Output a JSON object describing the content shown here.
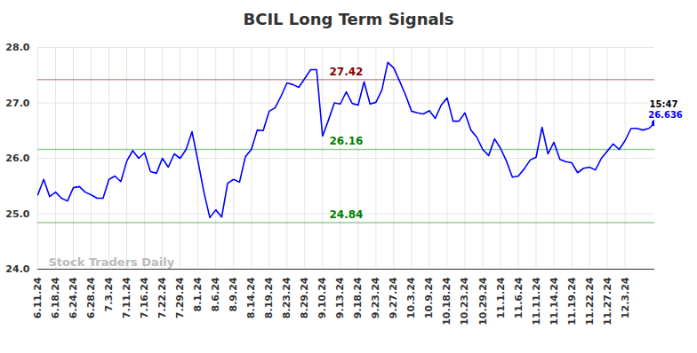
{
  "chart_data": {
    "type": "line",
    "title": "BCIL Long Term Signals",
    "categories": [
      "6.11.24",
      null,
      null,
      "6.18.24",
      null,
      null,
      "6.24.24",
      null,
      null,
      "6.28.24",
      null,
      null,
      "7.3.24",
      null,
      null,
      "7.11.24",
      null,
      null,
      "7.16.24",
      null,
      null,
      "7.22.24",
      null,
      null,
      "7.29.24",
      null,
      null,
      "8.1.24",
      null,
      null,
      "8.6.24",
      null,
      null,
      "8.9.24",
      null,
      null,
      "8.14.24",
      null,
      null,
      "8.19.24",
      null,
      null,
      "8.23.24",
      null,
      null,
      "8.29.24",
      null,
      null,
      "9.10.24",
      null,
      null,
      "9.13.24",
      null,
      null,
      "9.18.24",
      null,
      null,
      "9.23.24",
      null,
      null,
      "9.27.24",
      null,
      null,
      "10.3.24",
      null,
      null,
      "10.9.24",
      null,
      null,
      "10.18.24",
      null,
      null,
      "10.23.24",
      null,
      null,
      "10.29.24",
      null,
      null,
      "11.1.24",
      null,
      null,
      "11.6.24",
      null,
      null,
      "11.11.24",
      null,
      null,
      "11.14.24",
      null,
      null,
      "11.19.24",
      null,
      null,
      "11.22.24",
      null,
      null,
      "11.27.24",
      null,
      null,
      "12.3.24",
      null,
      null,
      null,
      null,
      null
    ],
    "values": [
      25.34,
      25.62,
      25.31,
      25.39,
      25.28,
      25.23,
      25.47,
      25.49,
      25.39,
      25.34,
      25.28,
      25.28,
      25.62,
      25.68,
      25.58,
      25.95,
      26.14,
      26.0,
      26.1,
      25.76,
      25.73,
      26.0,
      25.84,
      26.08,
      26.0,
      26.16,
      26.48,
      25.95,
      25.39,
      24.93,
      25.07,
      24.94,
      25.55,
      25.62,
      25.57,
      26.03,
      26.16,
      26.51,
      26.5,
      26.85,
      26.91,
      27.12,
      27.36,
      27.33,
      27.28,
      27.44,
      27.6,
      27.6,
      26.4,
      26.69,
      27.0,
      26.98,
      27.2,
      26.99,
      26.96,
      27.38,
      26.98,
      27.01,
      27.23,
      27.73,
      27.63,
      27.39,
      27.14,
      26.85,
      26.82,
      26.8,
      26.86,
      26.72,
      26.96,
      27.09,
      26.67,
      26.67,
      26.82,
      26.51,
      26.38,
      26.16,
      26.05,
      26.35,
      26.18,
      25.95,
      25.66,
      25.68,
      25.81,
      25.97,
      26.02,
      26.56,
      26.08,
      26.29,
      25.98,
      25.94,
      25.92,
      25.74,
      25.82,
      25.84,
      25.79,
      26.0,
      26.13,
      26.26,
      26.16,
      26.32,
      26.54,
      26.54,
      26.51,
      26.54,
      26.636
    ],
    "color": "#0000ff",
    "ylim": [
      24,
      28
    ],
    "yticks": [
      24,
      25,
      26,
      27,
      28
    ],
    "grid": true,
    "hlines": [
      {
        "value": 27.42,
        "color": "#8b0000"
      },
      {
        "value": 26.16,
        "color": "#008000"
      },
      {
        "value": 24.84,
        "color": "#008000"
      }
    ],
    "last_point_label": "15:47",
    "watermark": "Stock Traders Daily"
  }
}
